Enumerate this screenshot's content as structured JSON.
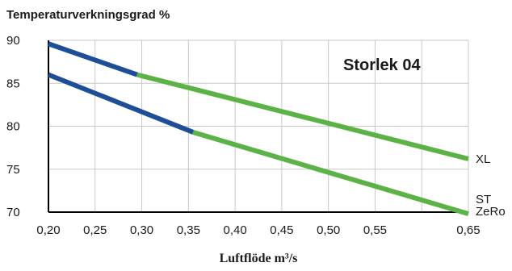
{
  "chart_data": {
    "type": "line",
    "title": "Temperaturverkningsgrad %",
    "xlabel": "Luftflöde m³/s",
    "ylabel": "",
    "annotation": "Storlek 04",
    "xlim": [
      0.2,
      0.65
    ],
    "ylim": [
      70,
      90
    ],
    "x_ticks": [
      "0,20",
      "0,25",
      "0,30",
      "0,35",
      "0,40",
      "0,45",
      "0,50",
      "0,55",
      "0,65"
    ],
    "y_ticks": [
      "90",
      "85",
      "80",
      "75",
      "70"
    ],
    "grid": true,
    "colors": {
      "segment_low": "#1f4e99",
      "segment_high": "#5bb346",
      "grid": "#c8c8c8"
    },
    "series": [
      {
        "name": "XL",
        "points": [
          {
            "x": 0.2,
            "y": 89.6
          },
          {
            "x": 0.295,
            "y": 86.0
          },
          {
            "x": 0.65,
            "y": 76.2
          }
        ],
        "switch_x": 0.295
      },
      {
        "name": "ST ZeRo",
        "label_lines": [
          "ST",
          "ZeRo"
        ],
        "points": [
          {
            "x": 0.2,
            "y": 86.0
          },
          {
            "x": 0.355,
            "y": 79.3
          },
          {
            "x": 0.65,
            "y": 69.8
          }
        ],
        "switch_x": 0.355
      }
    ]
  }
}
